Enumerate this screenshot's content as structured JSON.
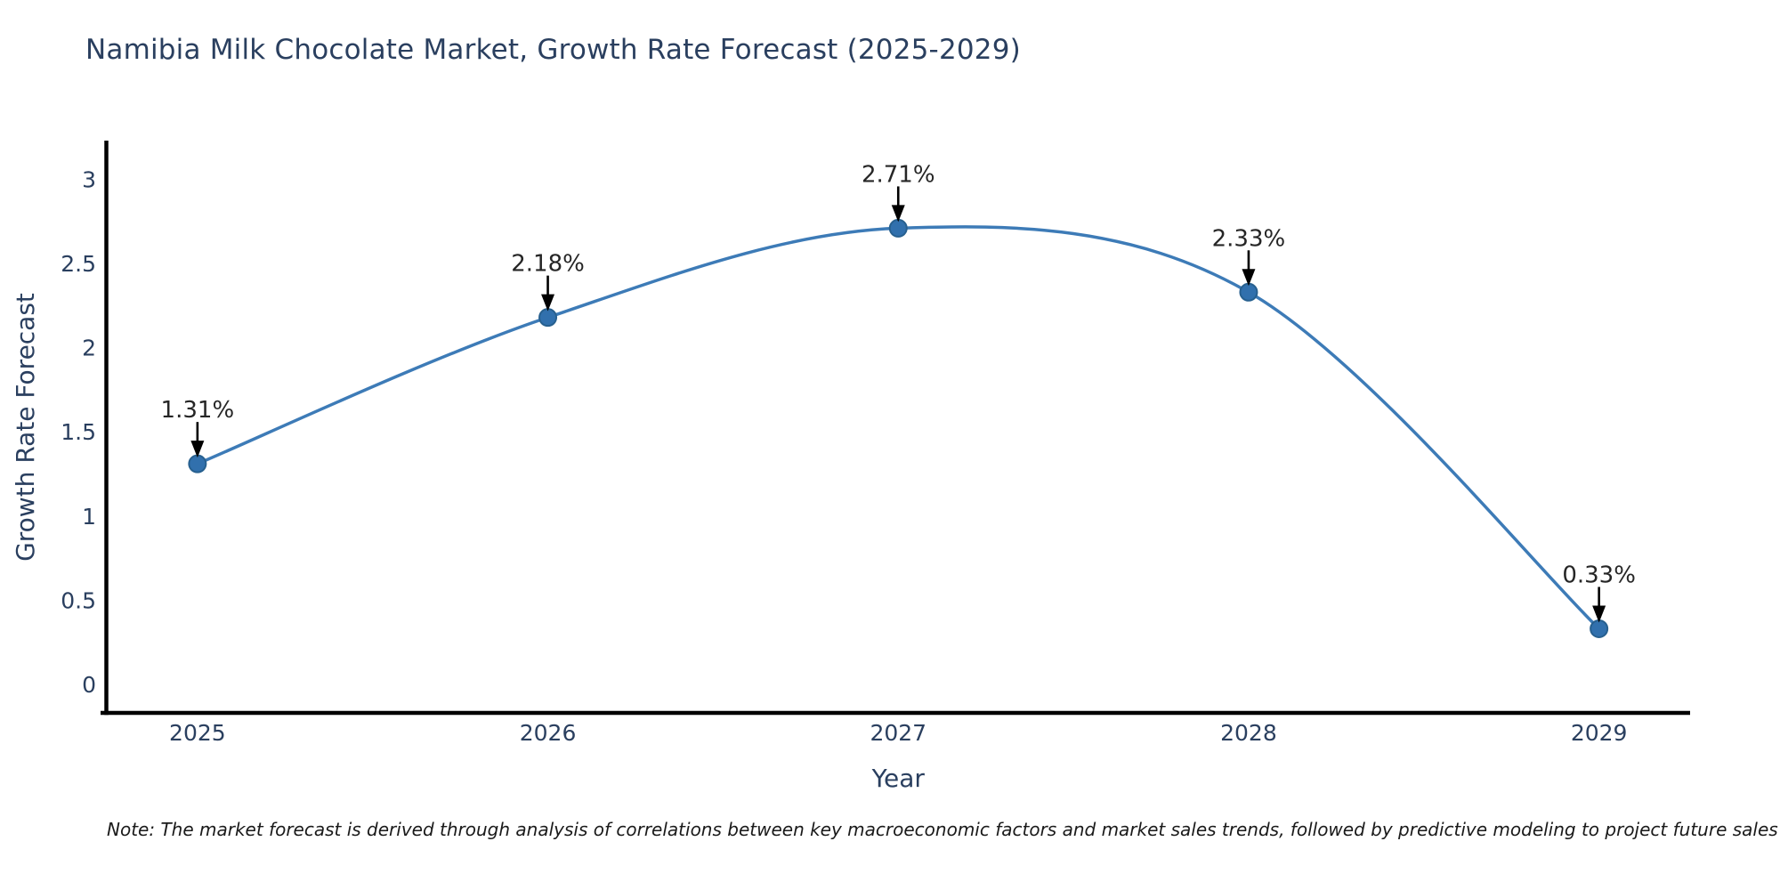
{
  "figure": {
    "note": "Note: The market forecast is derived through analysis of correlations between key macroeconomic factors and market sales trends, followed by predictive modeling to project future sales"
  },
  "chart_data": {
    "type": "line",
    "title": "Namibia Milk Chocolate Market, Growth Rate Forecast (2025-2029)",
    "xlabel": "Year",
    "ylabel": "Growth Rate Forecast",
    "x": [
      2025,
      2026,
      2027,
      2028,
      2029
    ],
    "categories": [
      "2025",
      "2026",
      "2027",
      "2028",
      "2029"
    ],
    "values": [
      1.31,
      2.18,
      2.71,
      2.33,
      0.33
    ],
    "point_labels": [
      "1.31%",
      "2.18%",
      "2.71%",
      "2.33%",
      "0.33%"
    ],
    "yticks": [
      0,
      0.5,
      1,
      1.5,
      2,
      2.5,
      3
    ],
    "ytick_labels": [
      "0",
      "0.5",
      "1",
      "1.5",
      "2",
      "2.5",
      "3"
    ],
    "xlim": [
      2024.74,
      2029.26
    ],
    "ylim": [
      -0.17,
      3.22
    ],
    "grid": false,
    "legend_position": "none",
    "line_shape": "spline",
    "colors": {
      "line": "#3d7bb7",
      "marker": "#3170ad",
      "marker_edge": "#27608f",
      "axis": "#000000",
      "tick_text": "#2a3f5f",
      "title_text": "#2a3f5f",
      "annotation_text": "#262626",
      "arrow": "#000000",
      "note_text": "#1a1a1a",
      "background": "#ffffff"
    }
  }
}
